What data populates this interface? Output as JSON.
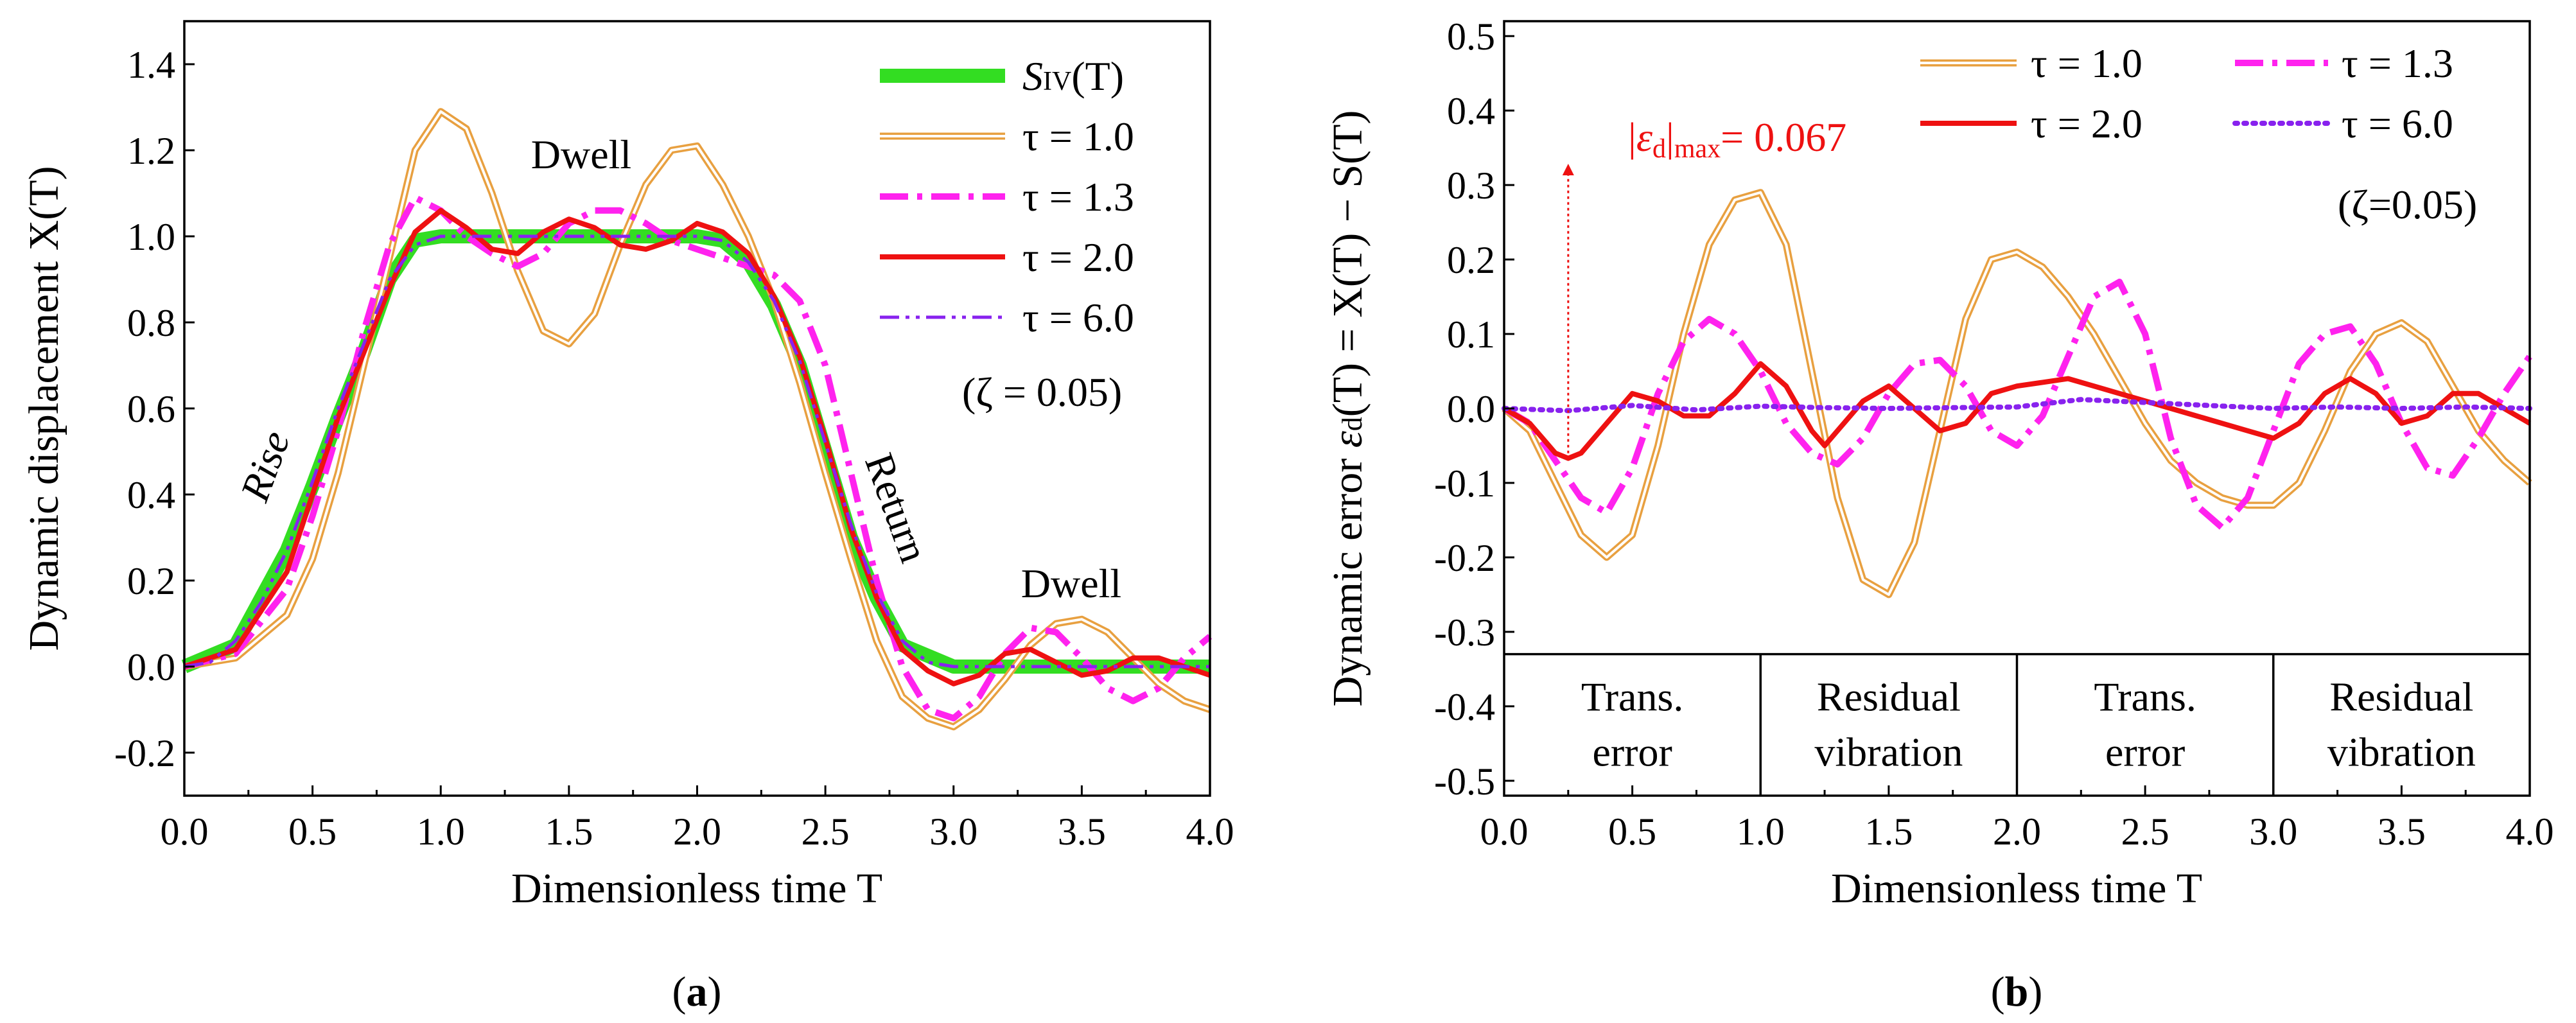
{
  "chart_data": [
    {
      "panel": "(a)",
      "panel_label": {
        "open": "(",
        "letter": "a",
        "close": ")"
      },
      "type": "line",
      "xlabel": "Dimensionless time T",
      "ylabel": "Dynamic displacement X(T)",
      "xlim": [
        0,
        4
      ],
      "ylim": [
        -0.3,
        1.5
      ],
      "xticks": [
        0,
        0.5,
        1,
        1.5,
        2,
        2.5,
        3,
        3.5,
        4
      ],
      "xtick_labels": [
        "0.0",
        "0.5",
        "1.0",
        "1.5",
        "2.0",
        "2.5",
        "3.0",
        "3.5",
        "4.0"
      ],
      "yticks": [
        -0.2,
        0,
        0.2,
        0.4,
        0.6,
        0.8,
        1.0,
        1.2,
        1.4
      ],
      "ytick_labels": [
        "-0.2",
        "0.0",
        "0.2",
        "0.4",
        "0.6",
        "0.8",
        "1.0",
        "1.2",
        "1.4"
      ],
      "legend": [
        {
          "label": "S_IV(T)",
          "main": "S",
          "sub": "IV",
          "rest": "(T)",
          "color": "#33dd22",
          "style": "thick"
        },
        {
          "label": "τ = 1.0",
          "color": "#e8a040",
          "style": "double"
        },
        {
          "label": "τ = 1.3",
          "color": "#ff22ee",
          "style": "dashdot"
        },
        {
          "label": "τ = 2.0",
          "color": "#ee1111",
          "style": "solid"
        },
        {
          "label": "τ = 6.0",
          "color": "#8822ee",
          "style": "dashdotdot"
        }
      ],
      "note": "(ζ = 0.05)",
      "annotations": [
        "Rise",
        "Dwell",
        "Return",
        "Dwell"
      ],
      "series": [
        {
          "name": "S_IV(T)",
          "x": [
            0,
            0.2,
            0.4,
            0.5,
            0.6,
            0.7,
            0.8,
            0.9,
            1.0,
            1.5,
            2.0,
            2.1,
            2.2,
            2.3,
            2.4,
            2.5,
            2.6,
            2.7,
            2.8,
            3.0,
            4.0
          ],
          "y": [
            0,
            0.05,
            0.27,
            0.42,
            0.58,
            0.73,
            0.9,
            0.99,
            1.0,
            1.0,
            1.0,
            0.99,
            0.94,
            0.84,
            0.7,
            0.5,
            0.3,
            0.16,
            0.05,
            0.0,
            0.0
          ]
        },
        {
          "name": "τ = 1.0",
          "x": [
            0,
            0.2,
            0.4,
            0.5,
            0.6,
            0.7,
            0.8,
            0.9,
            1.0,
            1.1,
            1.2,
            1.3,
            1.4,
            1.5,
            1.6,
            1.7,
            1.8,
            1.9,
            2.0,
            2.1,
            2.2,
            2.3,
            2.4,
            2.5,
            2.6,
            2.7,
            2.8,
            2.9,
            3.0,
            3.1,
            3.2,
            3.3,
            3.4,
            3.5,
            3.6,
            3.7,
            3.8,
            3.9,
            4.0
          ],
          "y": [
            0,
            0.02,
            0.12,
            0.25,
            0.45,
            0.7,
            0.95,
            1.2,
            1.29,
            1.25,
            1.1,
            0.92,
            0.78,
            0.75,
            0.82,
            0.98,
            1.12,
            1.2,
            1.21,
            1.12,
            1.0,
            0.85,
            0.66,
            0.45,
            0.25,
            0.06,
            -0.07,
            -0.12,
            -0.14,
            -0.1,
            -0.03,
            0.05,
            0.1,
            0.11,
            0.08,
            0.02,
            -0.04,
            -0.08,
            -0.1
          ]
        },
        {
          "name": "τ = 1.3",
          "x": [
            0,
            0.2,
            0.4,
            0.5,
            0.6,
            0.7,
            0.8,
            0.9,
            1.0,
            1.1,
            1.2,
            1.3,
            1.4,
            1.5,
            1.6,
            1.7,
            1.8,
            1.9,
            2.0,
            2.1,
            2.2,
            2.3,
            2.4,
            2.5,
            2.6,
            2.7,
            2.8,
            2.9,
            3.0,
            3.1,
            3.2,
            3.3,
            3.4,
            3.5,
            3.6,
            3.7,
            3.8,
            3.9,
            4.0
          ],
          "y": [
            0,
            0.03,
            0.18,
            0.35,
            0.55,
            0.78,
            0.98,
            1.09,
            1.06,
            1.0,
            0.96,
            0.93,
            0.96,
            1.03,
            1.06,
            1.06,
            1.03,
            0.99,
            0.97,
            0.95,
            0.93,
            0.91,
            0.85,
            0.7,
            0.45,
            0.2,
            0.0,
            -0.1,
            -0.12,
            -0.07,
            0.03,
            0.09,
            0.08,
            0.02,
            -0.05,
            -0.08,
            -0.05,
            0.02,
            0.07
          ]
        },
        {
          "name": "τ = 2.0",
          "x": [
            0,
            0.2,
            0.4,
            0.5,
            0.6,
            0.7,
            0.8,
            0.9,
            1.0,
            1.1,
            1.2,
            1.3,
            1.4,
            1.5,
            1.6,
            1.7,
            1.8,
            1.9,
            2.0,
            2.1,
            2.2,
            2.3,
            2.4,
            2.5,
            2.6,
            2.7,
            2.8,
            2.9,
            3.0,
            3.1,
            3.2,
            3.3,
            3.4,
            3.5,
            3.6,
            3.7,
            3.8,
            3.9,
            4.0
          ],
          "y": [
            0,
            0.04,
            0.22,
            0.4,
            0.58,
            0.73,
            0.88,
            1.01,
            1.06,
            1.02,
            0.97,
            0.96,
            1.01,
            1.04,
            1.02,
            0.98,
            0.97,
            0.99,
            1.03,
            1.01,
            0.96,
            0.86,
            0.72,
            0.53,
            0.32,
            0.16,
            0.04,
            -0.01,
            -0.04,
            -0.02,
            0.03,
            0.04,
            0.01,
            -0.02,
            -0.01,
            0.02,
            0.02,
            0.0,
            -0.02
          ]
        },
        {
          "name": "τ = 6.0",
          "x": [
            0,
            0.1,
            0.2,
            0.3,
            0.4,
            0.5,
            0.6,
            0.7,
            0.8,
            0.9,
            1.0,
            1.5,
            2.0,
            2.1,
            2.2,
            2.3,
            2.4,
            2.5,
            2.6,
            2.7,
            2.8,
            2.9,
            3.0,
            3.5,
            4.0
          ],
          "y": [
            0,
            0.01,
            0.06,
            0.15,
            0.27,
            0.43,
            0.6,
            0.75,
            0.9,
            0.98,
            1.0,
            1.0,
            1.0,
            0.99,
            0.94,
            0.85,
            0.71,
            0.52,
            0.33,
            0.17,
            0.06,
            0.01,
            0.0,
            0.0,
            0.0
          ]
        }
      ]
    },
    {
      "panel": "(b)",
      "panel_label": {
        "open": "(",
        "letter": "b",
        "close": ")"
      },
      "type": "line",
      "xlabel": "Dimensionless time T",
      "ylabel": "Dynamic error εd(T) = X(T) − S(T)",
      "ylabel_parts": {
        "prefix": "Dynamic error ",
        "eps": "ε",
        "sub": "d",
        "rest": "(T) = X(T) − S(T)"
      },
      "xlim": [
        0,
        4
      ],
      "ylim": [
        -0.52,
        0.52
      ],
      "xticks": [
        0,
        0.5,
        1,
        1.5,
        2,
        2.5,
        3,
        3.5,
        4
      ],
      "xtick_labels": [
        "0.0",
        "0.5",
        "1.0",
        "1.5",
        "2.0",
        "2.5",
        "3.0",
        "3.5",
        "4.0"
      ],
      "yticks": [
        -0.5,
        -0.4,
        -0.3,
        -0.2,
        -0.1,
        0,
        0.1,
        0.2,
        0.3,
        0.4,
        0.5
      ],
      "ytick_labels": [
        "-0.5",
        "-0.4",
        "-0.3",
        "-0.2",
        "-0.1",
        "0.0",
        "0.1",
        "0.2",
        "0.3",
        "0.4",
        "0.5"
      ],
      "legend": [
        {
          "label": "τ = 1.0",
          "color": "#e8a040",
          "style": "double"
        },
        {
          "label": "τ = 1.3",
          "color": "#ff22ee",
          "style": "dashdot"
        },
        {
          "label": "τ = 2.0",
          "color": "#ee1111",
          "style": "solid"
        },
        {
          "label": "τ = 6.0",
          "color": "#8822ee",
          "style": "dotted"
        }
      ],
      "note": "(ζ=0.05)",
      "max_annotation": {
        "text": "|εd|max = 0.067",
        "abs_open": "|",
        "eps": "ε",
        "sub_d": "d",
        "abs_close": "|",
        "sub_max": "max",
        "value": "= 0.067",
        "x": 0.25,
        "y": -0.067,
        "color": "#ee1111"
      },
      "separator_y": -0.33,
      "regions": [
        {
          "x0": 0,
          "x1": 1,
          "line1": "Trans.",
          "line2": "error"
        },
        {
          "x0": 1,
          "x1": 2,
          "line1": "Residual",
          "line2": "vibration"
        },
        {
          "x0": 2,
          "x1": 3,
          "line1": "Trans.",
          "line2": "error"
        },
        {
          "x0": 3,
          "x1": 4,
          "line1": "Residual",
          "line2": "vibration"
        }
      ],
      "series": [
        {
          "name": "τ = 1.0",
          "x": [
            0,
            0.1,
            0.2,
            0.3,
            0.4,
            0.5,
            0.6,
            0.7,
            0.8,
            0.9,
            1.0,
            1.1,
            1.2,
            1.3,
            1.4,
            1.5,
            1.6,
            1.7,
            1.8,
            1.9,
            2.0,
            2.1,
            2.2,
            2.3,
            2.4,
            2.5,
            2.6,
            2.7,
            2.8,
            2.9,
            3.0,
            3.1,
            3.2,
            3.3,
            3.4,
            3.5,
            3.6,
            3.7,
            3.8,
            3.9,
            4.0
          ],
          "y": [
            0,
            -0.03,
            -0.1,
            -0.17,
            -0.2,
            -0.17,
            -0.05,
            0.1,
            0.22,
            0.28,
            0.29,
            0.22,
            0.05,
            -0.12,
            -0.23,
            -0.25,
            -0.18,
            -0.03,
            0.12,
            0.2,
            0.21,
            0.19,
            0.15,
            0.1,
            0.04,
            -0.02,
            -0.07,
            -0.1,
            -0.12,
            -0.13,
            -0.13,
            -0.1,
            -0.03,
            0.05,
            0.1,
            0.115,
            0.09,
            0.03,
            -0.03,
            -0.07,
            -0.1
          ]
        },
        {
          "name": "τ = 1.3",
          "x": [
            0,
            0.1,
            0.2,
            0.3,
            0.4,
            0.5,
            0.6,
            0.7,
            0.8,
            0.9,
            1.0,
            1.1,
            1.2,
            1.3,
            1.4,
            1.5,
            1.6,
            1.7,
            1.8,
            1.9,
            2.0,
            2.1,
            2.2,
            2.3,
            2.4,
            2.5,
            2.6,
            2.7,
            2.8,
            2.9,
            3.0,
            3.1,
            3.2,
            3.3,
            3.4,
            3.5,
            3.6,
            3.7,
            3.8,
            3.9,
            4.0
          ],
          "y": [
            0,
            -0.02,
            -0.07,
            -0.12,
            -0.14,
            -0.08,
            0.02,
            0.09,
            0.12,
            0.1,
            0.05,
            -0.02,
            -0.06,
            -0.075,
            -0.04,
            0.02,
            0.06,
            0.065,
            0.03,
            -0.03,
            -0.05,
            -0.01,
            0.07,
            0.15,
            0.17,
            0.1,
            -0.04,
            -0.13,
            -0.16,
            -0.12,
            -0.03,
            0.06,
            0.1,
            0.11,
            0.06,
            -0.02,
            -0.08,
            -0.09,
            -0.04,
            0.02,
            0.07
          ]
        },
        {
          "name": "τ = 2.0",
          "x": [
            0,
            0.1,
            0.2,
            0.25,
            0.3,
            0.4,
            0.5,
            0.6,
            0.7,
            0.8,
            0.9,
            1.0,
            1.1,
            1.2,
            1.25,
            1.3,
            1.4,
            1.5,
            1.6,
            1.7,
            1.8,
            1.9,
            2.0,
            2.1,
            2.2,
            2.3,
            2.4,
            2.5,
            2.6,
            2.7,
            2.8,
            2.9,
            3.0,
            3.1,
            3.2,
            3.3,
            3.4,
            3.5,
            3.6,
            3.7,
            3.8,
            3.9,
            4.0
          ],
          "y": [
            0,
            -0.02,
            -0.06,
            -0.067,
            -0.06,
            -0.02,
            0.02,
            0.01,
            -0.01,
            -0.01,
            0.02,
            0.06,
            0.03,
            -0.03,
            -0.05,
            -0.03,
            0.01,
            0.03,
            0.0,
            -0.03,
            -0.02,
            0.02,
            0.03,
            0.035,
            0.04,
            0.03,
            0.02,
            0.01,
            0.0,
            -0.01,
            -0.02,
            -0.03,
            -0.04,
            -0.02,
            0.02,
            0.04,
            0.02,
            -0.02,
            -0.01,
            0.02,
            0.02,
            0.0,
            -0.02
          ]
        },
        {
          "name": "τ = 6.0",
          "x": [
            0,
            0.25,
            0.5,
            0.75,
            1.0,
            1.25,
            1.5,
            1.75,
            2.0,
            2.25,
            2.5,
            2.75,
            3.0,
            3.25,
            3.5,
            3.75,
            4.0
          ],
          "y": [
            0,
            -0.003,
            0.004,
            -0.002,
            0.003,
            0.001,
            0.0,
            0.001,
            0.002,
            0.012,
            0.008,
            0.004,
            0.0,
            0.002,
            0.0,
            0.002,
            0.0
          ]
        }
      ]
    }
  ]
}
